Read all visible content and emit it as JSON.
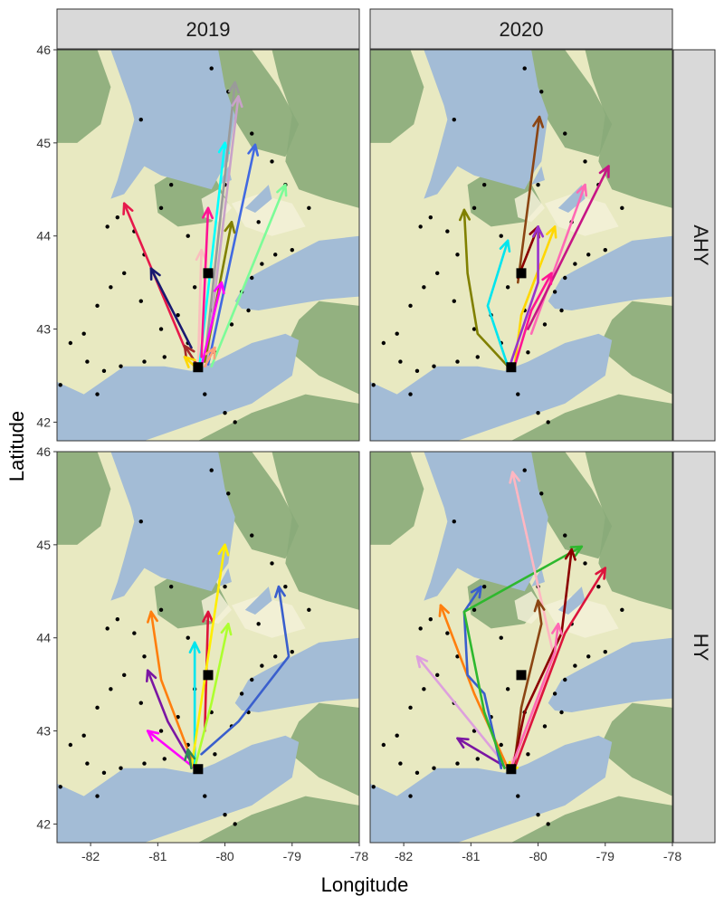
{
  "chart_data": {
    "type": "map",
    "xlabel": "Longitude",
    "ylabel": "Latitude",
    "xlim": [
      -82.5,
      -78
    ],
    "ylim": [
      41.8,
      46
    ],
    "xticks": [
      -82,
      -81,
      -80,
      -79,
      -78
    ],
    "yticks": [
      42,
      43,
      44,
      45,
      46
    ],
    "facet_columns": [
      "2019",
      "2020"
    ],
    "facet_rows": [
      "AHY",
      "HY"
    ],
    "colors": {
      "water": "#a3bcd6",
      "land_low": "#e8e9c1",
      "forest": "#8aab79",
      "strip_fill": "#d9d9d9",
      "station_dot": "#000000",
      "release_marker": "#000000"
    },
    "release_sites": [
      {
        "name": "south",
        "lon": -80.4,
        "lat": 42.59
      },
      {
        "name": "north",
        "lon": -80.25,
        "lat": 43.6
      }
    ],
    "stations": [
      [
        -82.1,
        42.95
      ],
      [
        -82.3,
        42.85
      ],
      [
        -81.9,
        43.25
      ],
      [
        -81.7,
        43.45
      ],
      [
        -81.5,
        43.6
      ],
      [
        -81.2,
        43.8
      ],
      [
        -81.35,
        44.05
      ],
      [
        -80.95,
        44.3
      ],
      [
        -81.6,
        44.2
      ],
      [
        -81.75,
        44.1
      ],
      [
        -81.25,
        45.25
      ],
      [
        -80.2,
        45.8
      ],
      [
        -79.95,
        45.55
      ],
      [
        -79.6,
        45.1
      ],
      [
        -79.3,
        44.8
      ],
      [
        -79.1,
        44.55
      ],
      [
        -78.75,
        44.3
      ],
      [
        -79.0,
        43.85
      ],
      [
        -79.25,
        43.8
      ],
      [
        -79.45,
        43.7
      ],
      [
        -79.6,
        43.55
      ],
      [
        -79.75,
        43.4
      ],
      [
        -79.65,
        43.2
      ],
      [
        -79.9,
        43.05
      ],
      [
        -80.15,
        42.75
      ],
      [
        -80.55,
        42.85
      ],
      [
        -80.9,
        42.7
      ],
      [
        -81.2,
        42.65
      ],
      [
        -81.55,
        42.6
      ],
      [
        -81.8,
        42.55
      ],
      [
        -82.05,
        42.65
      ],
      [
        -82.45,
        42.4
      ],
      [
        -81.9,
        42.3
      ],
      [
        -80.3,
        42.3
      ],
      [
        -80.0,
        42.1
      ],
      [
        -79.85,
        42.0
      ],
      [
        -80.7,
        43.15
      ],
      [
        -80.45,
        43.45
      ],
      [
        -80.2,
        43.2
      ],
      [
        -80.95,
        43.0
      ],
      [
        -81.25,
        43.3
      ],
      [
        -80.55,
        44.0
      ],
      [
        -80.0,
        44.55
      ],
      [
        -80.8,
        44.55
      ],
      [
        -79.5,
        44.15
      ]
    ],
    "panels": [
      {
        "col": "2019",
        "row": "AHY",
        "tracks": [
          {
            "color": "#e6194b",
            "points": [
              [
                -80.6,
                42.8
              ],
              [
                -81.5,
                44.35
              ]
            ]
          },
          {
            "color": "#191970",
            "points": [
              [
                -80.5,
                42.8
              ],
              [
                -81.1,
                43.65
              ]
            ]
          },
          {
            "color": "#a52a2a",
            "points": [
              [
                -80.4,
                42.6
              ],
              [
                -80.6,
                42.82
              ]
            ]
          },
          {
            "color": "#fabebe",
            "points": [
              [
                -80.4,
                42.62
              ],
              [
                -80.35,
                43.85
              ]
            ]
          },
          {
            "color": "#00ffff",
            "points": [
              [
                -80.38,
                42.6
              ],
              [
                -80.0,
                45.0
              ]
            ]
          },
          {
            "color": "#9a9a9a",
            "points": [
              [
                -80.3,
                42.65
              ],
              [
                -79.85,
                45.65
              ]
            ]
          },
          {
            "color": "#c8a2c8",
            "points": [
              [
                -80.28,
                42.6
              ],
              [
                -79.8,
                45.5
              ]
            ]
          },
          {
            "color": "#4169e1",
            "points": [
              [
                -80.25,
                42.62
              ],
              [
                -79.55,
                44.98
              ]
            ]
          },
          {
            "color": "#7cfc98",
            "points": [
              [
                -80.2,
                42.6
              ],
              [
                -79.1,
                44.55
              ]
            ]
          },
          {
            "color": "#ff1493",
            "points": [
              [
                -80.35,
                42.7
              ],
              [
                -80.25,
                44.3
              ]
            ]
          },
          {
            "color": "#808000",
            "points": [
              [
                -80.3,
                42.65
              ],
              [
                -79.9,
                44.15
              ]
            ]
          },
          {
            "color": "#ff00ff",
            "points": [
              [
                -80.35,
                42.6
              ],
              [
                -80.05,
                43.5
              ]
            ]
          },
          {
            "color": "#ffd700",
            "points": [
              [
                -80.45,
                42.6
              ],
              [
                -80.6,
                42.7
              ]
            ]
          },
          {
            "color": "#ffa07a",
            "points": [
              [
                -80.3,
                42.6
              ],
              [
                -80.15,
                42.8
              ]
            ]
          }
        ]
      },
      {
        "col": "2020",
        "row": "AHY",
        "tracks": [
          {
            "color": "#808000",
            "points": [
              [
                -80.45,
                42.6
              ],
              [
                -80.9,
                42.95
              ],
              [
                -81.05,
                43.6
              ],
              [
                -81.1,
                44.28
              ]
            ]
          },
          {
            "color": "#00e5ee",
            "points": [
              [
                -80.45,
                42.6
              ],
              [
                -80.75,
                43.25
              ],
              [
                -80.45,
                43.95
              ]
            ]
          },
          {
            "color": "#8b4513",
            "points": [
              [
                -80.3,
                43.5
              ],
              [
                -79.98,
                45.28
              ]
            ]
          },
          {
            "color": "#8b0000",
            "points": [
              [
                -80.3,
                43.55
              ],
              [
                -80.0,
                44.1
              ]
            ]
          },
          {
            "color": "#ff69b4",
            "points": [
              [
                -80.1,
                42.95
              ],
              [
                -79.3,
                44.55
              ]
            ]
          },
          {
            "color": "#c71585",
            "points": [
              [
                -80.15,
                43.0
              ],
              [
                -78.95,
                44.75
              ]
            ]
          },
          {
            "color": "#ffd700",
            "points": [
              [
                -80.35,
                42.6
              ],
              [
                -80.25,
                43.15
              ],
              [
                -79.75,
                44.1
              ]
            ]
          },
          {
            "color": "#9932cc",
            "points": [
              [
                -80.4,
                42.65
              ],
              [
                -80.0,
                43.5
              ],
              [
                -80.0,
                44.1
              ]
            ]
          },
          {
            "color": "#ff1493",
            "points": [
              [
                -80.35,
                42.6
              ],
              [
                -80.1,
                43.2
              ],
              [
                -79.8,
                43.6
              ]
            ]
          }
        ]
      },
      {
        "col": "2019",
        "row": "HY",
        "tracks": [
          {
            "color": "#ff7f0e",
            "points": [
              [
                -80.45,
                42.6
              ],
              [
                -80.95,
                43.55
              ],
              [
                -81.1,
                44.28
              ]
            ]
          },
          {
            "color": "#7b16a3",
            "points": [
              [
                -80.45,
                42.6
              ],
              [
                -80.85,
                43.1
              ],
              [
                -81.15,
                43.65
              ]
            ]
          },
          {
            "color": "#ff00ff",
            "points": [
              [
                -80.45,
                42.6
              ],
              [
                -80.8,
                42.8
              ],
              [
                -81.15,
                43.0
              ]
            ]
          },
          {
            "color": "#00e5ee",
            "points": [
              [
                -80.45,
                42.6
              ],
              [
                -80.45,
                43.95
              ]
            ]
          },
          {
            "color": "#dc143c",
            "points": [
              [
                -80.3,
                43.0
              ],
              [
                -80.25,
                44.28
              ]
            ]
          },
          {
            "color": "#ffee00",
            "points": [
              [
                -80.5,
                42.6
              ],
              [
                -80.0,
                45.0
              ]
            ]
          },
          {
            "color": "#adff2f",
            "points": [
              [
                -80.45,
                42.6
              ],
              [
                -80.2,
                43.3
              ],
              [
                -79.95,
                44.15
              ]
            ]
          },
          {
            "color": "#3a5fcd",
            "points": [
              [
                -80.35,
                42.75
              ],
              [
                -79.8,
                43.1
              ],
              [
                -79.05,
                43.8
              ],
              [
                -79.2,
                44.55
              ]
            ]
          },
          {
            "color": "#2e8b57",
            "points": [
              [
                -80.5,
                42.6
              ],
              [
                -80.55,
                42.8
              ]
            ]
          }
        ]
      },
      {
        "col": "2020",
        "row": "HY",
        "tracks": [
          {
            "color": "#7b16a3",
            "points": [
              [
                -80.45,
                42.6
              ],
              [
                -81.2,
                42.92
              ]
            ]
          },
          {
            "color": "#dda0dd",
            "points": [
              [
                -80.45,
                42.6
              ],
              [
                -81.8,
                43.8
              ]
            ]
          },
          {
            "color": "#ff7f0e",
            "points": [
              [
                -80.45,
                42.6
              ],
              [
                -80.95,
                43.4
              ],
              [
                -81.45,
                44.35
              ]
            ]
          },
          {
            "color": "#3a5fcd",
            "points": [
              [
                -80.55,
                42.6
              ],
              [
                -80.8,
                43.4
              ],
              [
                -81.05,
                43.6
              ],
              [
                -81.1,
                44.28
              ],
              [
                -80.85,
                44.55
              ]
            ]
          },
          {
            "color": "#2eb82e",
            "points": [
              [
                -80.5,
                42.6
              ],
              [
                -80.8,
                43.2
              ],
              [
                -81.1,
                44.28
              ],
              [
                -79.35,
                44.98
              ]
            ]
          },
          {
            "color": "#ffb6c1",
            "points": [
              [
                -80.4,
                42.65
              ],
              [
                -79.75,
                43.75
              ],
              [
                -80.38,
                45.78
              ]
            ]
          },
          {
            "color": "#8b4513",
            "points": [
              [
                -80.35,
                42.65
              ],
              [
                -80.25,
                43.25
              ],
              [
                -79.95,
                44.15
              ],
              [
                -80.0,
                44.4
              ]
            ]
          },
          {
            "color": "#8b0000",
            "points": [
              [
                -80.35,
                42.7
              ],
              [
                -80.2,
                43.2
              ],
              [
                -79.65,
                44.05
              ],
              [
                -79.5,
                44.95
              ]
            ]
          },
          {
            "color": "#dc143c",
            "points": [
              [
                -80.35,
                42.6
              ],
              [
                -79.6,
                44.05
              ],
              [
                -79.0,
                44.75
              ]
            ]
          },
          {
            "color": "#ff69b4",
            "points": [
              [
                -80.4,
                42.6
              ],
              [
                -79.75,
                43.85
              ],
              [
                -79.7,
                44.15
              ]
            ]
          },
          {
            "color": "#ffee00",
            "points": [
              [
                -80.4,
                42.6
              ],
              [
                -80.45,
                42.55
              ]
            ]
          }
        ]
      }
    ]
  }
}
